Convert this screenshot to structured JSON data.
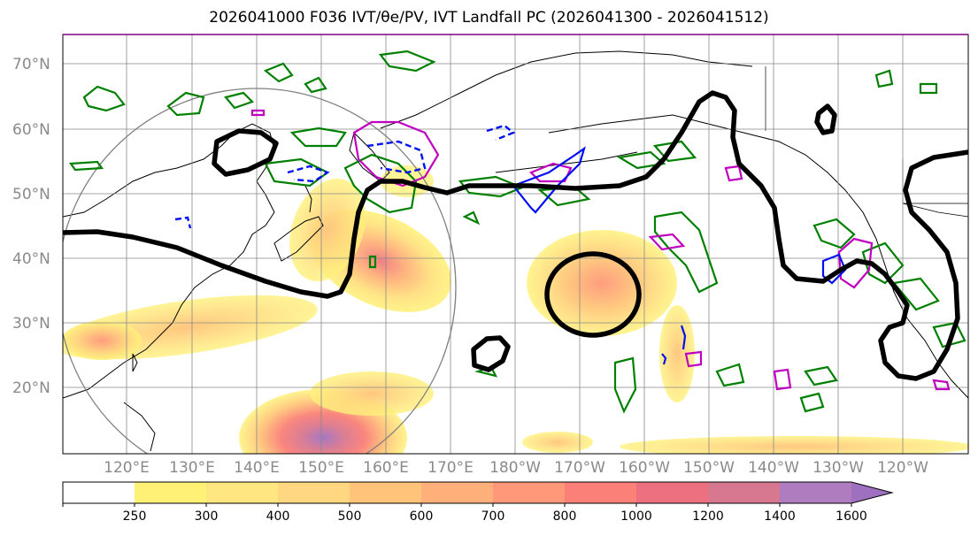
{
  "title": "2026041000 F036 IVT/θe/PV, IVT Landfall PC (2026041300 - 2026041512)",
  "map": {
    "latitude_labels": [
      "70°N",
      "60°N",
      "50°N",
      "40°N",
      "30°N",
      "20°N"
    ],
    "longitude_labels": [
      "120°E",
      "130°E",
      "140°E",
      "150°E",
      "160°E",
      "170°E",
      "180°W",
      "170°W",
      "160°W",
      "150°W",
      "140°W",
      "130°W",
      "120°W"
    ]
  },
  "colorbar": {
    "labels": [
      "250",
      "300",
      "400",
      "500",
      "600",
      "700",
      "800",
      "1000",
      "1200",
      "1400",
      "1600"
    ],
    "colors": [
      "#ffffff",
      "#fff176",
      "#ffe680",
      "#ffd780",
      "#ffc47a",
      "#ffb07a",
      "#ff9878",
      "#fa8078",
      "#ec7080",
      "#d87890",
      "#b07cc0",
      "#a070c0"
    ]
  },
  "colors": {
    "theta_e_contour": "#000000",
    "ivt_contour_green": "#008000",
    "pv_magenta": "#c000c0",
    "pv_blue": "#0010ee",
    "grid": "#888888"
  }
}
